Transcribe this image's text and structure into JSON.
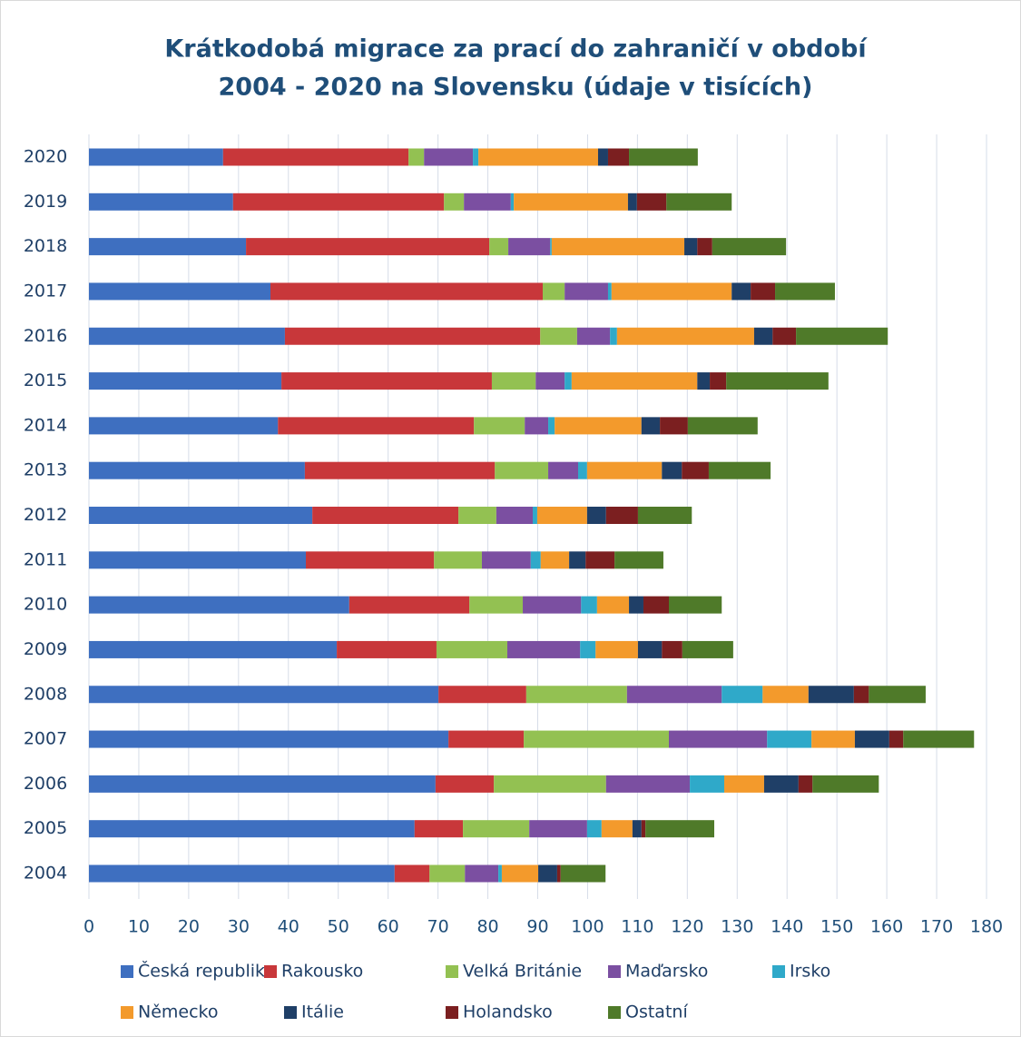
{
  "chart_data": {
    "type": "stacked_barh",
    "title": "Krátkodobá migrace za prací do zahraničí v období",
    "subtitle": "2004 - 2020 na Slovensku (údaje v tisících)",
    "categories": [
      "2020",
      "2019",
      "2018",
      "2017",
      "2016",
      "2015",
      "2014",
      "2013",
      "2012",
      "2011",
      "2010",
      "2009",
      "2008",
      "2007",
      "2006",
      "2005",
      "2004"
    ],
    "series": [
      {
        "name": "Česká republika",
        "color": "#3e6fc0",
        "values": [
          26.9,
          28.9,
          31.5,
          36.4,
          39.3,
          38.6,
          37.9,
          43.3,
          44.8,
          43.5,
          52.2,
          49.7,
          70.1,
          72.1,
          69.5,
          65.3,
          61.3
        ]
      },
      {
        "name": "Rakousko",
        "color": "#c8373a",
        "values": [
          37.2,
          42.3,
          48.8,
          54.6,
          51.2,
          42.2,
          39.3,
          38.1,
          29.3,
          25.7,
          24.1,
          20.0,
          17.6,
          15.1,
          11.7,
          9.7,
          7.0
        ]
      },
      {
        "name": "Velká Británie",
        "color": "#93c152",
        "values": [
          3.1,
          4.0,
          3.8,
          4.4,
          7.4,
          8.8,
          10.2,
          10.7,
          7.6,
          9.6,
          10.7,
          14.2,
          20.2,
          29.1,
          22.5,
          13.3,
          7.1
        ]
      },
      {
        "name": "Maďarsko",
        "color": "#7b4fa1",
        "values": [
          9.8,
          9.4,
          8.4,
          8.7,
          6.6,
          5.8,
          4.7,
          6.0,
          7.3,
          9.8,
          11.7,
          14.6,
          19.0,
          19.7,
          16.8,
          11.6,
          6.7
        ]
      },
      {
        "name": "Irsko",
        "color": "#2fa9c9",
        "values": [
          1.1,
          0.6,
          0.3,
          0.7,
          1.4,
          1.4,
          1.3,
          1.8,
          0.9,
          2.0,
          3.2,
          3.1,
          8.2,
          8.9,
          6.9,
          2.9,
          0.7
        ]
      },
      {
        "name": "Německo",
        "color": "#f39a2c",
        "values": [
          24.0,
          22.9,
          26.6,
          24.1,
          27.5,
          25.2,
          17.4,
          15.0,
          10.0,
          5.7,
          6.4,
          8.5,
          9.2,
          8.7,
          8.0,
          6.2,
          7.3
        ]
      },
      {
        "name": "Itálie",
        "color": "#1f3f67",
        "values": [
          2.0,
          1.8,
          2.6,
          3.8,
          3.7,
          2.5,
          3.7,
          4.0,
          3.8,
          3.3,
          2.9,
          4.8,
          9.1,
          6.9,
          6.9,
          1.8,
          3.8
        ]
      },
      {
        "name": "Holandsko",
        "color": "#7b1f20",
        "values": [
          4.2,
          5.9,
          3.0,
          4.9,
          4.7,
          3.3,
          5.6,
          5.4,
          6.4,
          5.8,
          5.1,
          4.1,
          3.0,
          2.8,
          2.8,
          0.8,
          0.7
        ]
      },
      {
        "name": "Ostatní",
        "color": "#4f7a29",
        "values": [
          13.8,
          13.1,
          14.8,
          12.0,
          18.4,
          20.5,
          14.0,
          12.4,
          10.8,
          9.8,
          10.6,
          10.2,
          11.4,
          14.2,
          13.3,
          13.8,
          9.0
        ]
      }
    ],
    "xlim": [
      0,
      180
    ],
    "xticks": [
      0,
      10,
      20,
      30,
      40,
      50,
      60,
      70,
      80,
      90,
      100,
      110,
      120,
      130,
      140,
      150,
      160,
      170,
      180
    ],
    "grid": true
  }
}
